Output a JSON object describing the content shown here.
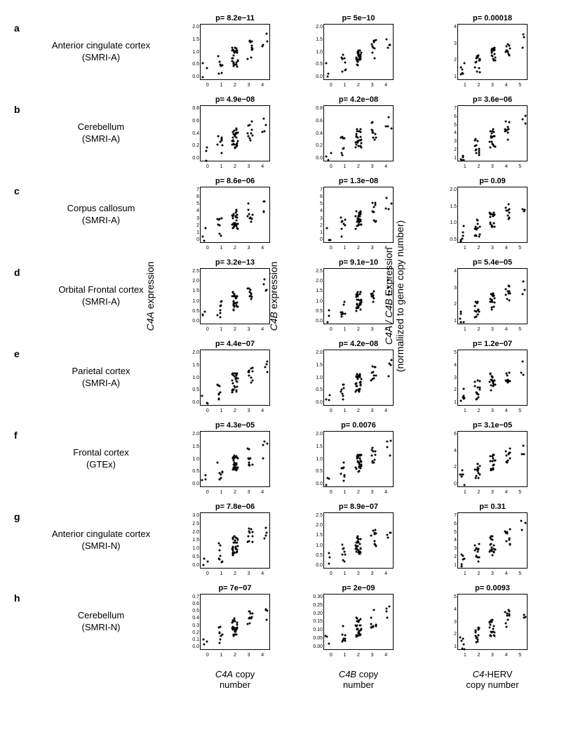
{
  "columns": {
    "c4a": {
      "ylabel_html": "<span class='italic'>C4A</span> expression",
      "xlabel_html": "<span class='italic'>C4A</span> copy<br>number",
      "xticks": [
        "0",
        "1",
        "2",
        "3",
        "4"
      ],
      "xdomain": [
        0,
        4
      ]
    },
    "c4b": {
      "ylabel_html": "<span class='italic'>C4B</span> expression",
      "xlabel_html": "<span class='italic'>C4B</span> copy<br>number",
      "xticks": [
        "0",
        "1",
        "2",
        "3",
        "4"
      ],
      "xdomain": [
        0,
        4
      ]
    },
    "herv": {
      "ylabel_html": "<span class='italic'>C4A / C4B</span> Expression<br>(normaliized to gene copy number)",
      "xlabel_html": "<span class='italic'>C4</span>-HERV<br>copy number",
      "xticks": [
        "1",
        "2",
        "3",
        "4",
        "5"
      ],
      "xdomain": [
        1,
        5
      ]
    }
  },
  "rows": [
    {
      "letter": "a",
      "label": "Anterior cingulate cortex",
      "source": "(SMRI-A)",
      "plots": {
        "c4a": {
          "p": "p= 8.2e−11",
          "ylim": [
            0,
            2.0
          ],
          "yticks": [
            "0.0",
            "0.5",
            "1.0",
            "1.5",
            "2.0"
          ]
        },
        "c4b": {
          "p": "p= 5e−10",
          "ylim": [
            0,
            2.0
          ],
          "yticks": [
            "0.0",
            "0.5",
            "1.0",
            "1.5",
            "2.0"
          ]
        },
        "herv": {
          "p": "p= 0.00018",
          "ylim": [
            1,
            4
          ],
          "yticks": [
            "1",
            "2",
            "3",
            "4"
          ]
        }
      }
    },
    {
      "letter": "b",
      "label": "Cerebellum",
      "source": "(SMRI-A)",
      "plots": {
        "c4a": {
          "p": "p= 4.9e−08",
          "ylim": [
            0,
            0.8
          ],
          "yticks": [
            "0.0",
            "0.2",
            "0.4",
            "0.6",
            "0.8"
          ]
        },
        "c4b": {
          "p": "p= 4.2e−08",
          "ylim": [
            0,
            0.8
          ],
          "yticks": [
            "0.0",
            "0.2",
            "0.4",
            "0.6",
            "0.8"
          ]
        },
        "herv": {
          "p": "p= 3.6e−06",
          "ylim": [
            1,
            7
          ],
          "yticks": [
            "1",
            "2",
            "3",
            "4",
            "5",
            "6",
            "7"
          ]
        }
      }
    },
    {
      "letter": "c",
      "label": "Corpus callosum",
      "source": "(SMRI-A)",
      "plots": {
        "c4a": {
          "p": "p= 8.6e−06",
          "ylim": [
            0,
            7
          ],
          "yticks": [
            "0",
            "1",
            "2",
            "3",
            "4",
            "5",
            "6",
            "7"
          ]
        },
        "c4b": {
          "p": "p= 1.3e−08",
          "ylim": [
            0,
            7
          ],
          "yticks": [
            "0",
            "1",
            "2",
            "3",
            "4",
            "5",
            "6",
            "7"
          ]
        },
        "herv": {
          "p": "p= 0.09",
          "ylim": [
            0.5,
            2.0
          ],
          "yticks": [
            "0.5",
            "1.0",
            "1.5",
            "2.0"
          ]
        }
      }
    },
    {
      "letter": "d",
      "label": "Orbital Frontal cortex",
      "source": "(SMRI-A)",
      "plots": {
        "c4a": {
          "p": "p= 3.2e−13",
          "ylim": [
            0,
            2.5
          ],
          "yticks": [
            "0.0",
            "0.5",
            "1.0",
            "1.5",
            "2.0",
            "2.5"
          ]
        },
        "c4b": {
          "p": "p= 9.1e−10",
          "ylim": [
            0,
            2.5
          ],
          "yticks": [
            "0.0",
            "0.5",
            "1.0",
            "1.5",
            "2.0",
            "2.5"
          ]
        },
        "herv": {
          "p": "p= 5.4e−05",
          "ylim": [
            1,
            4
          ],
          "yticks": [
            "1",
            "2",
            "3",
            "4"
          ]
        }
      }
    },
    {
      "letter": "e",
      "label": "Parietal cortex",
      "source": "(SMRI-A)",
      "plots": {
        "c4a": {
          "p": "p= 4.4e−07",
          "ylim": [
            0,
            2.0
          ],
          "yticks": [
            "0.0",
            "0.5",
            "1.0",
            "1.5",
            "2.0"
          ]
        },
        "c4b": {
          "p": "p= 4.2e−08",
          "ylim": [
            0,
            2.0
          ],
          "yticks": [
            "0.0",
            "0.5",
            "1.0",
            "1.5",
            "2.0"
          ]
        },
        "herv": {
          "p": "p= 1.2e−07",
          "ylim": [
            1,
            5
          ],
          "yticks": [
            "1",
            "2",
            "3",
            "4",
            "5"
          ]
        }
      }
    },
    {
      "letter": "f",
      "label": "Frontal cortex",
      "source": "(GTEx)",
      "plots": {
        "c4a": {
          "p": "p= 4.3e−05",
          "ylim": [
            0,
            2.0
          ],
          "yticks": [
            "0.0",
            "0.5",
            "1.0",
            "1.5",
            "2.0"
          ]
        },
        "c4b": {
          "p": "p= 0.0076",
          "ylim": [
            0,
            2.0
          ],
          "yticks": [
            "0.0",
            "0.5",
            "1.0",
            "1.5",
            "2.0"
          ]
        },
        "herv": {
          "p": "p= 3.1e−05",
          "ylim": [
            0,
            6
          ],
          "yticks": [
            "0",
            "2",
            "4",
            "6"
          ]
        }
      }
    },
    {
      "letter": "g",
      "label": "Anterior cingulate cortex",
      "source": "(SMRI-N)",
      "plots": {
        "c4a": {
          "p": "p= 7.8e−06",
          "ylim": [
            0,
            3.0
          ],
          "yticks": [
            "0.0",
            "0.5",
            "1.0",
            "1.5",
            "2.0",
            "2.5",
            "3.0"
          ]
        },
        "c4b": {
          "p": "p= 8.9e−07",
          "ylim": [
            0,
            2.5
          ],
          "yticks": [
            "0.0",
            "0.5",
            "1.0",
            "1.5",
            "2.0",
            "2.5"
          ]
        },
        "herv": {
          "p": "p= 0.31",
          "ylim": [
            1,
            7
          ],
          "yticks": [
            "1",
            "2",
            "3",
            "4",
            "5",
            "6",
            "7"
          ]
        }
      }
    },
    {
      "letter": "h",
      "label": "Cerebellum",
      "source": "(SMRI-N)",
      "plots": {
        "c4a": {
          "p": "p= 7e−07",
          "ylim": [
            0,
            0.7
          ],
          "yticks": [
            "0.0",
            "0.1",
            "0.2",
            "0.3",
            "0.4",
            "0.5",
            "0.6",
            "0.7"
          ]
        },
        "c4b": {
          "p": "p= 2e−09",
          "ylim": [
            0,
            0.3
          ],
          "yticks": [
            "0.00",
            "0.05",
            "0.10",
            "0.15",
            "0.20",
            "0.25",
            "0.30"
          ]
        },
        "herv": {
          "p": "p= 0.0093",
          "ylim": [
            1,
            5
          ],
          "yticks": [
            "1",
            "2",
            "3",
            "4",
            "5"
          ]
        }
      }
    }
  ],
  "style": {
    "dot_color": "#000000",
    "border_color": "#000000",
    "bg_color": "#ffffff",
    "pval_fontsize": 11,
    "label_fontsize": 13,
    "tick_fontsize": 7
  },
  "scatter_pattern": {
    "comment": "Approximate jittered strip-plot pattern seeded per xtick. Dense cluster at x=2, sparser elsewhere, positive trend.",
    "counts_ab": {
      "0": 3,
      "1": 8,
      "2": 28,
      "3": 10,
      "4": 4
    },
    "counts_herv": {
      "1": 6,
      "2": 14,
      "3": 18,
      "4": 10,
      "5": 3
    },
    "jitter_x": 0.18
  }
}
